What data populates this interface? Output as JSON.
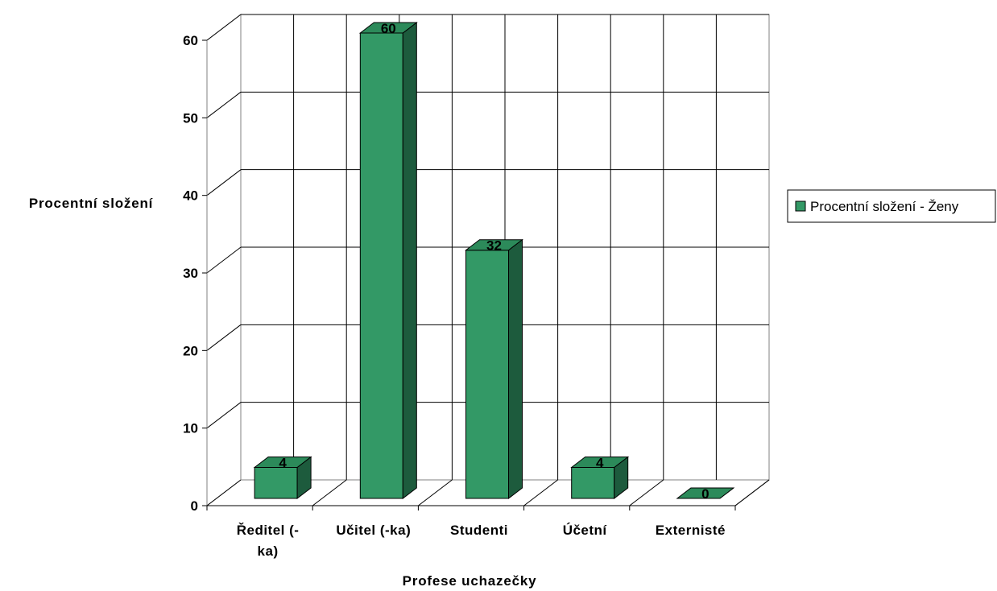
{
  "chart_data": {
    "type": "bar",
    "categories": [
      [
        "Ředitel (-",
        "ka)"
      ],
      [
        "Učitel (-ka)"
      ],
      [
        "Studenti"
      ],
      [
        "Účetní"
      ],
      [
        "Externisté"
      ]
    ],
    "series": [
      {
        "name": "Procentní složení - Ženy",
        "values": [
          4,
          60,
          32,
          4,
          0
        ]
      }
    ],
    "data_labels": [
      "4",
      "60",
      "32",
      "4",
      "0"
    ],
    "ylabel": "Procentní složení",
    "xlabel": "Profese uchazečky",
    "ylim": [
      0,
      60
    ],
    "yticks": [
      0,
      10,
      20,
      30,
      40,
      50,
      60
    ],
    "grid": true,
    "three_d": true,
    "legend_position": "right",
    "colors": {
      "bar_front": "#339966",
      "bar_side": "#1d5b3d",
      "bar_top": "#2c8a5a",
      "grid": "#000000",
      "wall": "#ffffff"
    }
  }
}
